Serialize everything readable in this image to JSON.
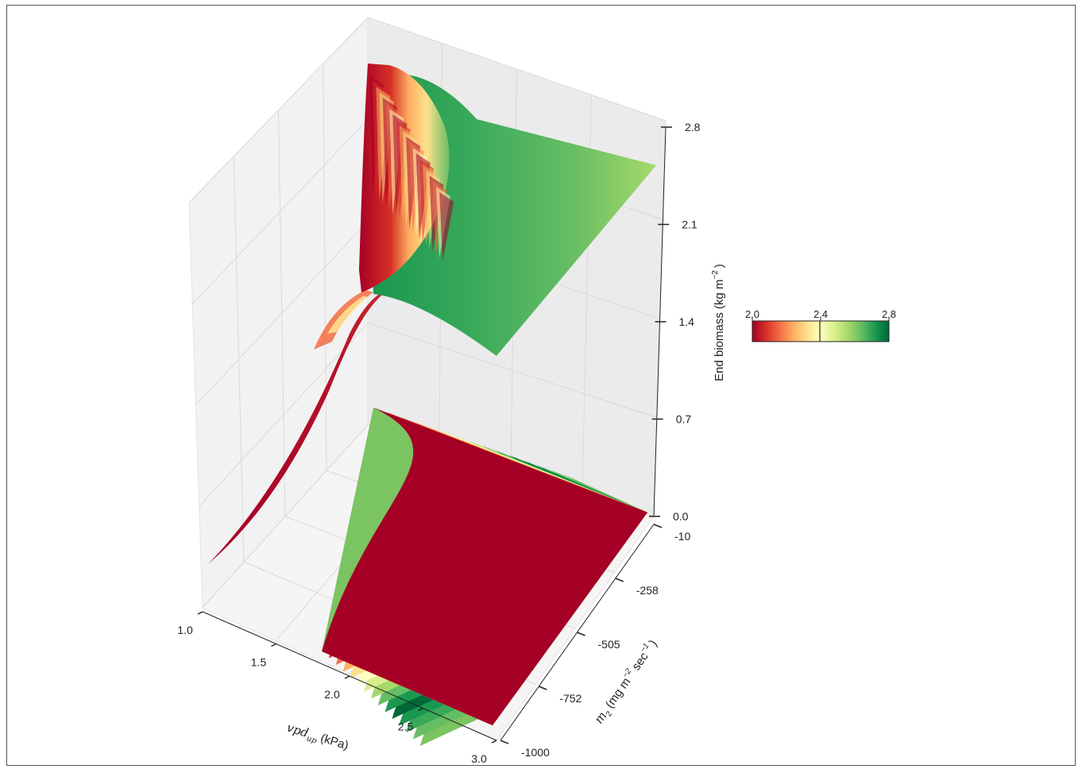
{
  "chart_data": {
    "type": "surface3d",
    "x_axis": {
      "label_math": "vpd",
      "label_sub": "up",
      "label_unit": "(kPa)",
      "ticks": [
        "1.0",
        "1.5",
        "2.0",
        "2.5",
        "3.0"
      ],
      "range": [
        1.0,
        3.0
      ]
    },
    "y_axis": {
      "label_math": "m",
      "label_sub": "2",
      "label_unit": "(mg m",
      "label_exp1": "−2",
      "label_mid": " sec",
      "label_exp2": "−1",
      "label_end": ")",
      "ticks": [
        "-10",
        "-258",
        "-505",
        "-752",
        "-1000"
      ],
      "range": [
        -1000,
        -10
      ]
    },
    "z_axis": {
      "label": "End biomass (kg m",
      "label_exp": "−2",
      "label_end": ")",
      "ticks": [
        "0.0",
        "0.7",
        "1.4",
        "2.1",
        "2.8"
      ],
      "range": [
        0.0,
        2.8
      ]
    },
    "colorbar": {
      "ticks": [
        "2.0",
        "2.4",
        "2.8"
      ],
      "range": [
        2.0,
        2.8
      ],
      "colormap": [
        "#a50026",
        "#d73027",
        "#f46d43",
        "#fdae61",
        "#fee08b",
        "#ffffbf",
        "#d9ef8b",
        "#a6d96a",
        "#66bd63",
        "#1a9850",
        "#006837"
      ]
    },
    "projection": "filled contour at z = 0",
    "grid": true
  }
}
